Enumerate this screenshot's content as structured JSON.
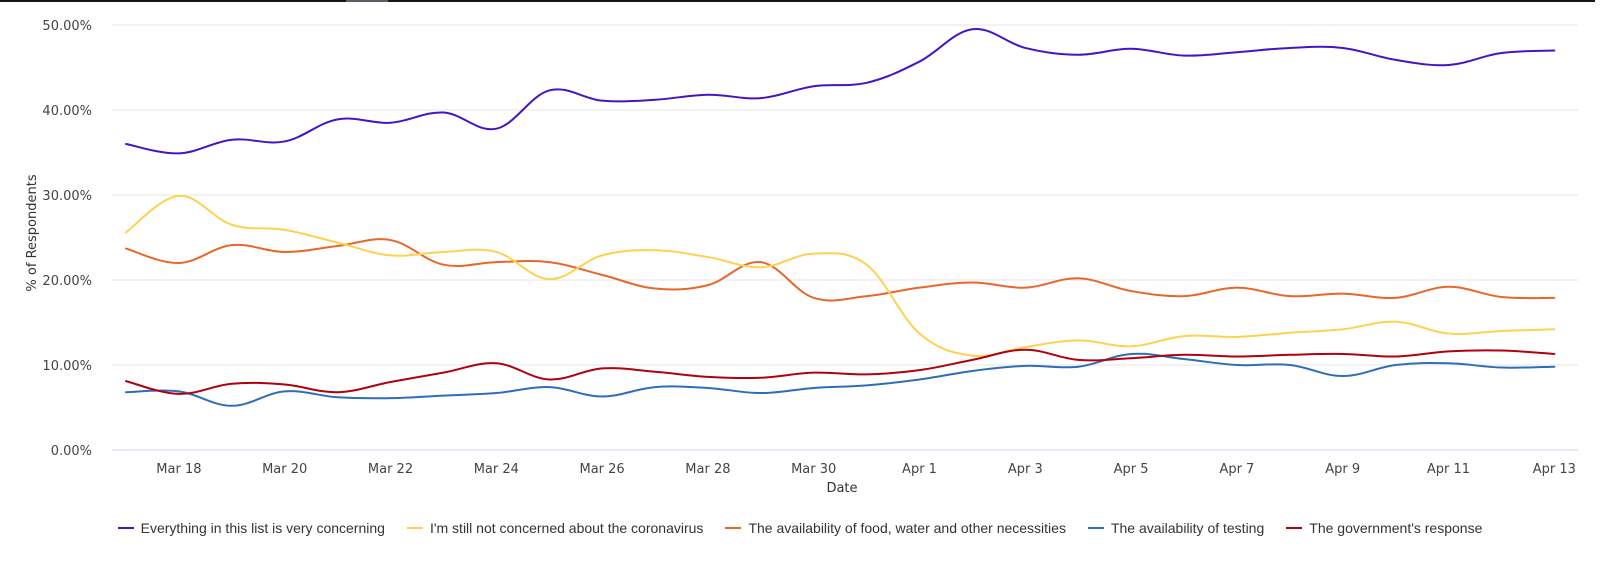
{
  "chart_data": {
    "type": "line",
    "title": "",
    "xlabel": "Date",
    "ylabel": "% of Respondents",
    "ylim": [
      0,
      50
    ],
    "yticks": [
      "0.00%",
      "10.00%",
      "20.00%",
      "30.00%",
      "40.00%",
      "50.00%"
    ],
    "ytick_values": [
      0,
      10,
      20,
      30,
      40,
      50
    ],
    "grid": true,
    "legend_position": "bottom",
    "x": [
      "Mar 17",
      "Mar 18",
      "Mar 19",
      "Mar 20",
      "Mar 21",
      "Mar 22",
      "Mar 23",
      "Mar 24",
      "Mar 25",
      "Mar 26",
      "Mar 27",
      "Mar 28",
      "Mar 29",
      "Mar 30",
      "Mar 31",
      "Apr 1",
      "Apr 2",
      "Apr 3",
      "Apr 4",
      "Apr 5",
      "Apr 6",
      "Apr 7",
      "Apr 8",
      "Apr 9",
      "Apr 10",
      "Apr 11",
      "Apr 12",
      "Apr 13"
    ],
    "xticks": [
      "Mar 18",
      "Mar 20",
      "Mar 22",
      "Mar 24",
      "Mar 26",
      "Mar 28",
      "Mar 30",
      "Apr 1",
      "Apr 3",
      "Apr 5",
      "Apr 7",
      "Apr 9",
      "Apr 11",
      "Apr 13"
    ],
    "series": [
      {
        "name": "Everything in this list is very concerning",
        "color": "#4515c4",
        "values": [
          36.0,
          34.9,
          36.5,
          36.3,
          38.9,
          38.5,
          39.7,
          37.8,
          42.3,
          41.1,
          41.2,
          41.8,
          41.4,
          42.8,
          43.2,
          45.7,
          49.5,
          47.3,
          46.5,
          47.2,
          46.4,
          46.8,
          47.3,
          47.3,
          45.9,
          45.3,
          46.7,
          47.0
        ]
      },
      {
        "name": "I'm still not concerned about the coronavirus",
        "color": "#ffd150",
        "values": [
          25.6,
          29.9,
          26.5,
          25.9,
          24.4,
          22.9,
          23.3,
          23.3,
          20.1,
          22.9,
          23.5,
          22.7,
          21.5,
          23.1,
          21.8,
          13.7,
          11.1,
          12.1,
          12.9,
          12.2,
          13.4,
          13.3,
          13.8,
          14.2,
          15.1,
          13.7,
          14.0,
          14.2
        ]
      },
      {
        "name": "The availability of food, water and other necessities",
        "color": "#e8672b",
        "values": [
          23.7,
          22.0,
          24.1,
          23.3,
          24.0,
          24.7,
          21.8,
          22.1,
          22.1,
          20.6,
          19.0,
          19.4,
          22.1,
          17.9,
          18.1,
          19.1,
          19.7,
          19.1,
          20.2,
          18.7,
          18.1,
          19.1,
          18.1,
          18.4,
          17.9,
          19.2,
          18.0,
          17.9
        ]
      },
      {
        "name": "The availability of testing",
        "color": "#2f6db8",
        "values": [
          6.8,
          6.9,
          5.2,
          6.9,
          6.2,
          6.1,
          6.4,
          6.7,
          7.4,
          6.3,
          7.4,
          7.3,
          6.7,
          7.3,
          7.6,
          8.3,
          9.3,
          9.9,
          9.8,
          11.3,
          10.7,
          10.0,
          10.0,
          8.7,
          10.0,
          10.2,
          9.7,
          9.8
        ]
      },
      {
        "name": "The government's response",
        "color": "#b00012",
        "values": [
          8.1,
          6.6,
          7.8,
          7.7,
          6.8,
          8.0,
          9.1,
          10.2,
          8.3,
          9.6,
          9.2,
          8.6,
          8.5,
          9.1,
          8.9,
          9.4,
          10.6,
          11.8,
          10.6,
          10.8,
          11.2,
          11.0,
          11.2,
          11.3,
          11.0,
          11.6,
          11.7,
          11.3
        ]
      }
    ]
  },
  "style": {
    "grid_color": "#e6e6e6",
    "axis_line_color": "#ccd6eb"
  }
}
